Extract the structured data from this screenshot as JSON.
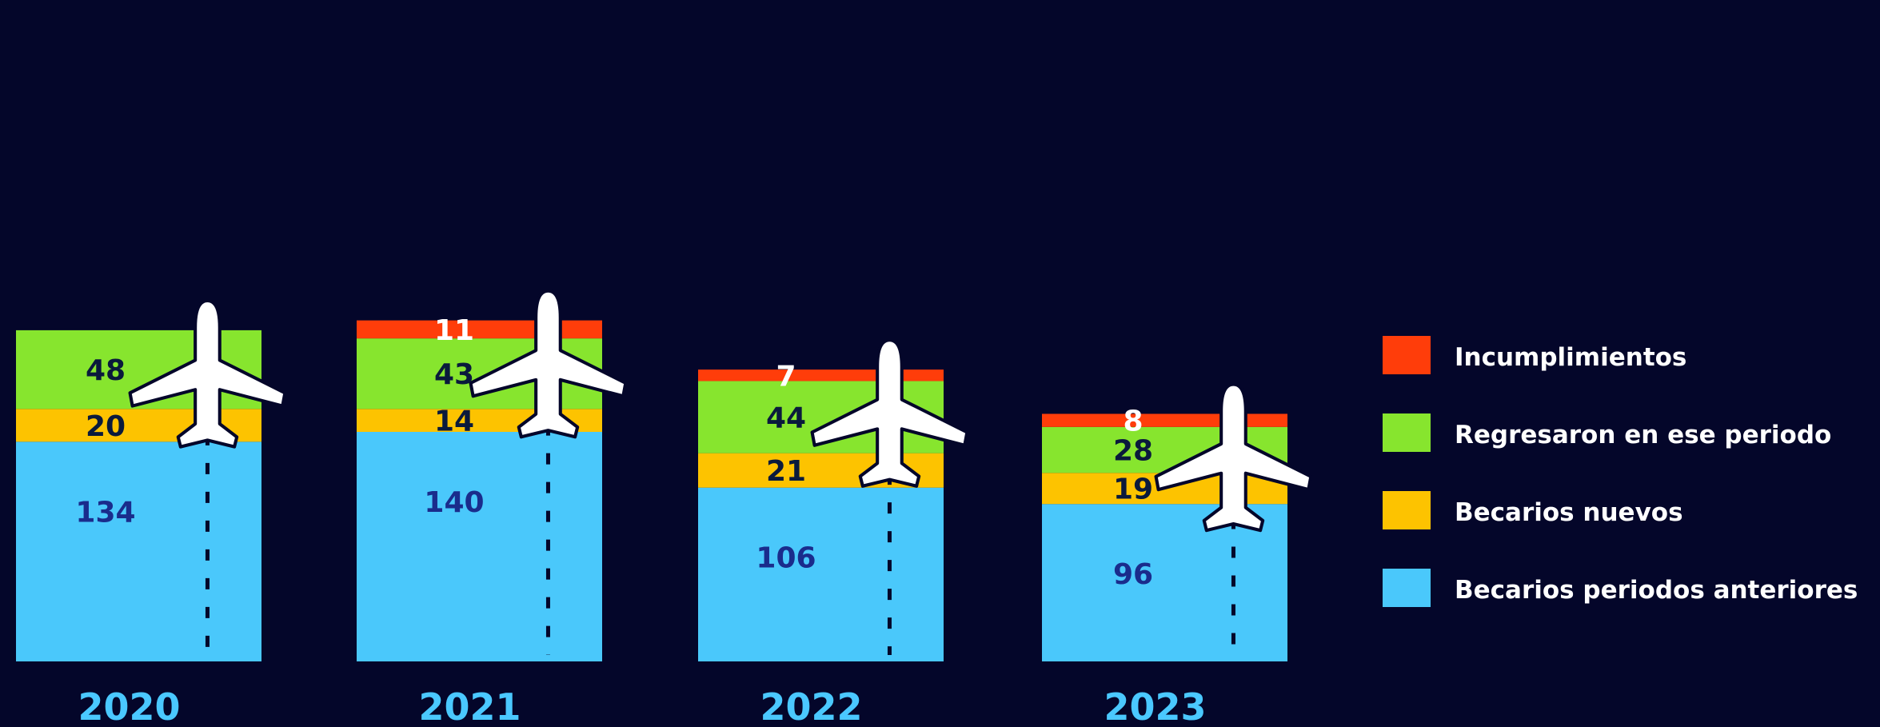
{
  "chart_data": {
    "type": "bar",
    "stacked": true,
    "categories": [
      "2020",
      "2021",
      "2022",
      "2023"
    ],
    "series": [
      {
        "name": "Becarios periodos anteriores",
        "color": "#4ac8fb",
        "label_color": "#1a2c8c",
        "values": [
          134,
          140,
          106,
          96
        ]
      },
      {
        "name": "Becarios nuevos",
        "color": "#fdc300",
        "label_color": "#0a1a3c",
        "values": [
          20,
          14,
          21,
          19
        ]
      },
      {
        "name": "Regresaron en ese periodo",
        "color": "#87e52e",
        "label_color": "#0a1a3c",
        "values": [
          48,
          43,
          44,
          28
        ]
      },
      {
        "name": "Incumplimientos",
        "color": "#ff3d0a",
        "label_color": "#ffffff",
        "values": [
          null,
          11,
          7,
          8
        ]
      }
    ],
    "legend_order": [
      "Incumplimientos",
      "Regresaron en ese periodo",
      "Becarios nuevos",
      "Becarios periodos anteriores"
    ],
    "legend_position": "right",
    "decoration_icon": "airplane-icon",
    "title": "",
    "xlabel": "",
    "ylabel": "",
    "grid": false
  }
}
